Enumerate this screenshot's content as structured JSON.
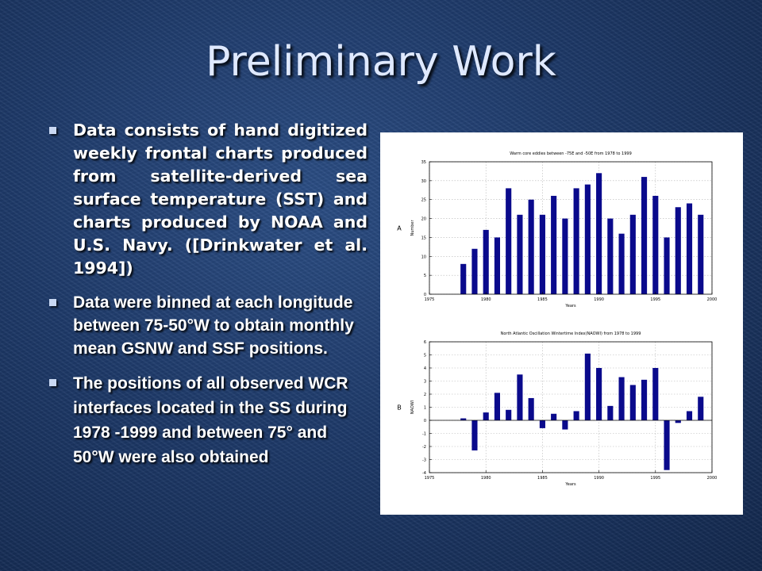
{
  "slide": {
    "title": "Preliminary Work",
    "bullets": [
      {
        "text": "Data consists of hand digitized weekly frontal charts produced from satellite-derived sea surface temperature (SST) and charts produced by NOAA and U.S. Navy.  ([Drinkwater et al. 1994])"
      },
      {
        "text": "Data were binned at each longitude between 75-50°W to obtain monthly mean GSNW and SSF positions."
      },
      {
        "text": "The positions of all observed WCR interfaces located in the SS during 1978 -1999 and between 75° and 50°W were also obtained"
      }
    ]
  },
  "chart_data": [
    {
      "type": "bar",
      "panel_label": "A",
      "title": "Warm core eddies between -75E and -50E from 1978 to 1999",
      "xlabel": "Years",
      "ylabel": "Number",
      "xlim": [
        1975,
        2000
      ],
      "ylim": [
        0,
        35
      ],
      "xticks": [
        1975,
        1980,
        1985,
        1990,
        1995,
        2000
      ],
      "yticks": [
        0,
        5,
        10,
        15,
        20,
        25,
        30,
        35
      ],
      "grid": true,
      "bar_color": "#0a0a8c",
      "x": [
        1978,
        1979,
        1980,
        1981,
        1982,
        1983,
        1984,
        1985,
        1986,
        1987,
        1988,
        1989,
        1990,
        1991,
        1992,
        1993,
        1994,
        1995,
        1996,
        1997,
        1998,
        1999
      ],
      "values": [
        8,
        12,
        17,
        15,
        28,
        21,
        25,
        21,
        26,
        20,
        28,
        29,
        32,
        20,
        16,
        21,
        31,
        26,
        15,
        23,
        24,
        21
      ]
    },
    {
      "type": "bar",
      "panel_label": "B",
      "title": "North Atlantic Oscillation Wintertime Index(NAOWI) from 1978 to 1999",
      "xlabel": "Years",
      "ylabel": "NAOWI",
      "xlim": [
        1975,
        2000
      ],
      "ylim": [
        -4,
        6
      ],
      "xticks": [
        1975,
        1980,
        1985,
        1990,
        1995,
        2000
      ],
      "yticks": [
        -4,
        -3,
        -2,
        -1,
        0,
        1,
        2,
        3,
        4,
        5,
        6
      ],
      "grid": true,
      "bar_color": "#0a0a8c",
      "x": [
        1978,
        1979,
        1980,
        1981,
        1982,
        1983,
        1984,
        1985,
        1986,
        1987,
        1988,
        1989,
        1990,
        1991,
        1992,
        1993,
        1994,
        1995,
        1996,
        1997,
        1998,
        1999
      ],
      "values": [
        0.15,
        -2.3,
        0.6,
        2.1,
        0.8,
        3.5,
        1.7,
        -0.6,
        0.5,
        -0.7,
        0.7,
        5.1,
        4.0,
        1.1,
        3.3,
        2.7,
        3.1,
        4.0,
        -3.8,
        -0.2,
        0.7,
        1.8
      ]
    }
  ]
}
